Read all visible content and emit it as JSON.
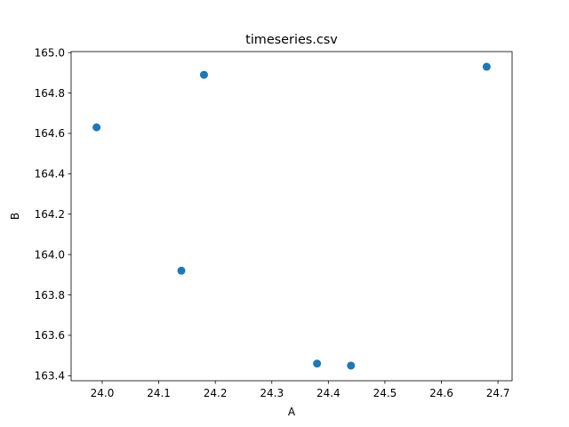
{
  "chart_data": {
    "type": "scatter",
    "title": "timeseries.csv",
    "xlabel": "A",
    "ylabel": "B",
    "xlim": [
      23.945,
      24.725
    ],
    "ylim": [
      163.375,
      165.005
    ],
    "xticks": [
      24.0,
      24.1,
      24.2,
      24.3,
      24.4,
      24.5,
      24.6,
      24.7
    ],
    "xtick_labels": [
      "24.0",
      "24.1",
      "24.2",
      "24.3",
      "24.4",
      "24.5",
      "24.6",
      "24.7"
    ],
    "yticks": [
      163.4,
      163.6,
      163.8,
      164.0,
      164.2,
      164.4,
      164.6,
      164.8,
      165.0
    ],
    "ytick_labels": [
      "163.4",
      "163.6",
      "163.8",
      "164.0",
      "164.2",
      "164.4",
      "164.6",
      "164.8",
      "165.0"
    ],
    "grid": false,
    "marker_color": "#1f77b4",
    "points": [
      {
        "x": 23.99,
        "y": 164.63
      },
      {
        "x": 24.14,
        "y": 163.92
      },
      {
        "x": 24.18,
        "y": 164.89
      },
      {
        "x": 24.38,
        "y": 163.46
      },
      {
        "x": 24.44,
        "y": 163.45
      },
      {
        "x": 24.68,
        "y": 164.93
      }
    ]
  }
}
